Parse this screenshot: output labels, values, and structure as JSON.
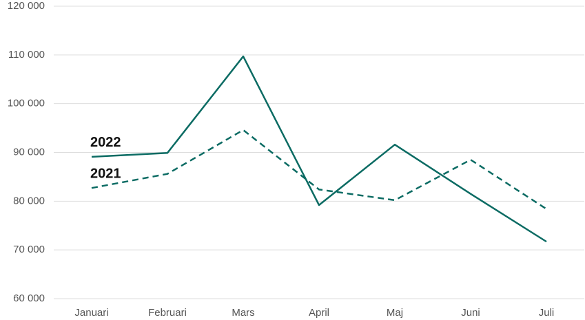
{
  "chart_data": {
    "type": "line",
    "categories": [
      "Januari",
      "Februari",
      "Mars",
      "April",
      "Maj",
      "Juni",
      "Juli"
    ],
    "series": [
      {
        "name": "2022",
        "color": "#0b6b63",
        "line_style": "solid",
        "values": [
          89100,
          89900,
          109700,
          79200,
          91600,
          81500,
          71700
        ]
      },
      {
        "name": "2021",
        "color": "#0b6b63",
        "line_style": "dashed",
        "values": [
          82700,
          85600,
          94600,
          82400,
          80200,
          88500,
          78400
        ]
      }
    ],
    "ylim": [
      60000,
      120000
    ],
    "yticks": [
      {
        "value": 60000,
        "label": "60 000"
      },
      {
        "value": 70000,
        "label": "70 000"
      },
      {
        "value": 80000,
        "label": "80 000"
      },
      {
        "value": 90000,
        "label": "90 000"
      },
      {
        "value": 100000,
        "label": "100 000"
      },
      {
        "value": 110000,
        "label": "110 000"
      },
      {
        "value": 120000,
        "label": "120 000"
      }
    ],
    "grid": true
  }
}
